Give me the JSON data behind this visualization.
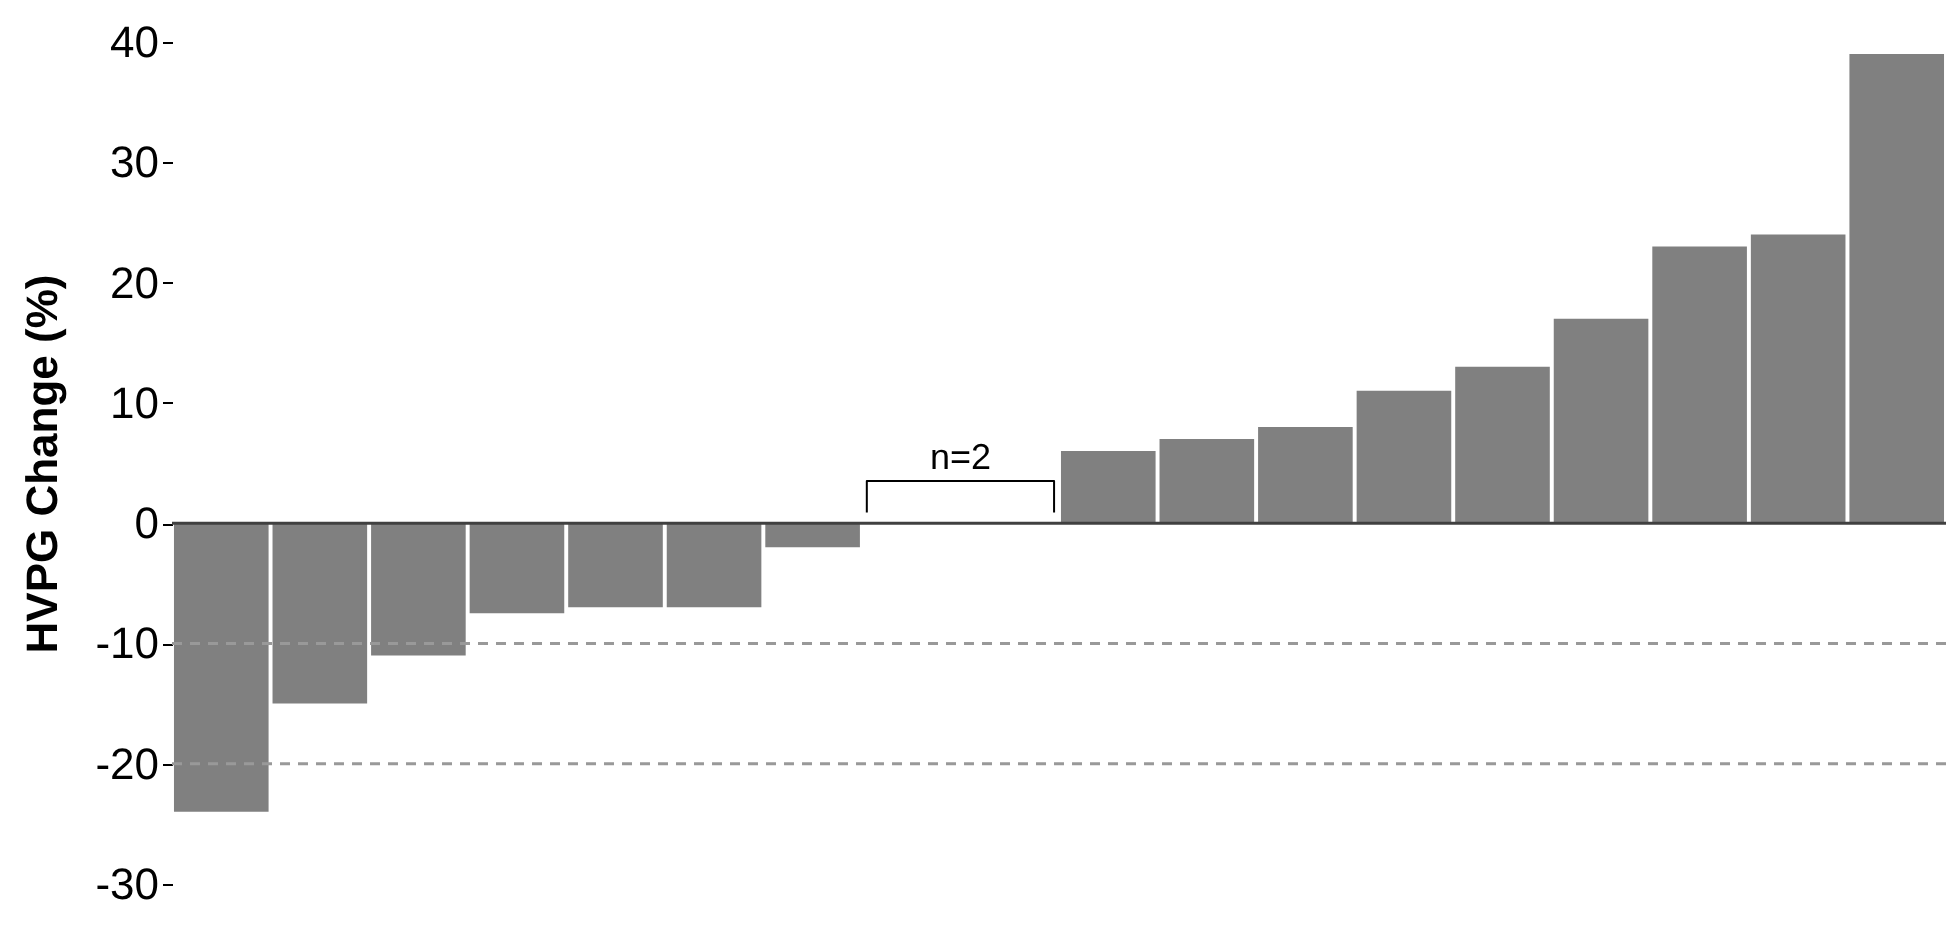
{
  "chart_data": {
    "type": "bar",
    "ylabel": "HVPG Change (%)",
    "categories": [
      null,
      null,
      null,
      null,
      null,
      null,
      null,
      null,
      null,
      null,
      null,
      null,
      null,
      null,
      null,
      null,
      null,
      null
    ],
    "values": [
      -24,
      -15,
      -11,
      -7.5,
      -7,
      -7,
      -2,
      0,
      0,
      6,
      7,
      8,
      11,
      13,
      17,
      23,
      24,
      39
    ],
    "color": "#808080",
    "ylim": [
      -30,
      40
    ],
    "yticks": [
      -30,
      -20,
      -10,
      0,
      10,
      20,
      30,
      40
    ],
    "grid": false,
    "tick_labels": "y",
    "ref_lines": [
      {
        "axis": "y",
        "value": 0,
        "color": "#404040",
        "line_style": "solid"
      },
      {
        "axis": "y",
        "value": -10,
        "color": "#999999",
        "line_style": "dashed"
      },
      {
        "axis": "y",
        "value": -20,
        "color": "#999999",
        "line_style": "dashed"
      }
    ],
    "annotations": [
      "n=2"
    ]
  }
}
